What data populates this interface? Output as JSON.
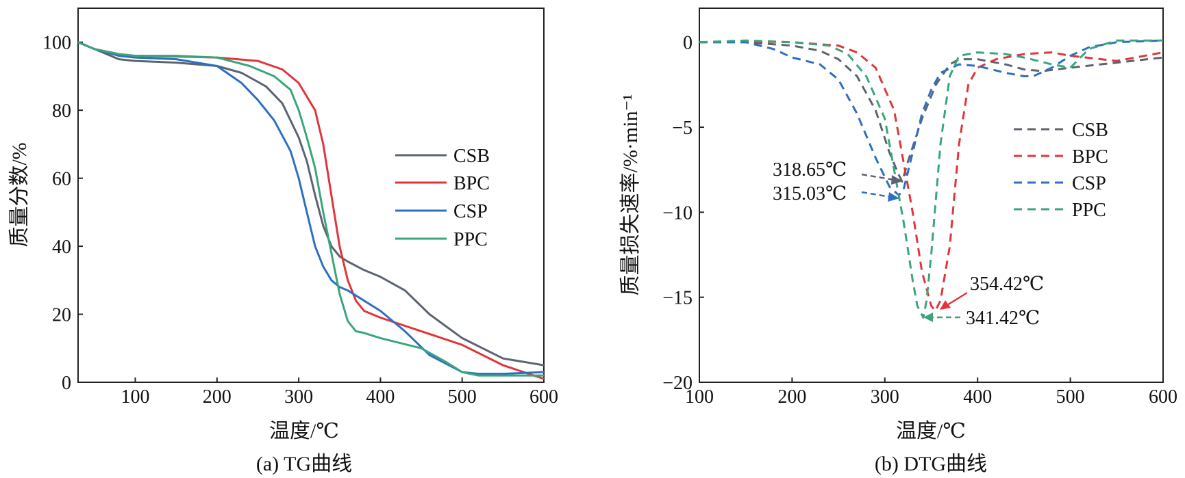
{
  "chart_data": [
    {
      "type": "line",
      "caption": "(a) TG曲线",
      "xlabel": "温度/℃",
      "ylabel": "质量分数/%",
      "xlim": [
        30,
        600
      ],
      "ylim": [
        0,
        110
      ],
      "xticks": [
        100,
        200,
        300,
        400,
        500,
        600
      ],
      "yticks": [
        0,
        20,
        40,
        60,
        80,
        100
      ],
      "legend_position": "right-center",
      "series": [
        {
          "name": "CSB",
          "color": "#5b6470",
          "dash": "solid",
          "x": [
            30,
            40,
            60,
            80,
            100,
            150,
            200,
            230,
            260,
            280,
            300,
            310,
            320,
            330,
            340,
            350,
            360,
            380,
            400,
            430,
            460,
            500,
            550,
            600
          ],
          "y": [
            100,
            99,
            97,
            95,
            94.5,
            94,
            93,
            91,
            87,
            82,
            72,
            65,
            55,
            46,
            40,
            37,
            35.5,
            33,
            31,
            27,
            20,
            13,
            7,
            5
          ]
        },
        {
          "name": "BPC",
          "color": "#e0353a",
          "dash": "solid",
          "x": [
            30,
            50,
            80,
            100,
            150,
            200,
            250,
            280,
            300,
            320,
            330,
            340,
            350,
            360,
            370,
            380,
            400,
            450,
            500,
            550,
            600
          ],
          "y": [
            100,
            98,
            96.5,
            96,
            95.8,
            95.5,
            94.5,
            92,
            88,
            80,
            70,
            55,
            40,
            30,
            24,
            21,
            19,
            15,
            11,
            5,
            1
          ]
        },
        {
          "name": "CSP",
          "color": "#2e6fc2",
          "dash": "solid",
          "x": [
            30,
            50,
            80,
            100,
            150,
            200,
            230,
            250,
            270,
            290,
            300,
            310,
            320,
            330,
            340,
            350,
            360,
            380,
            400,
            430,
            460,
            500,
            520,
            550,
            600
          ],
          "y": [
            100,
            98,
            96,
            95.5,
            95,
            93,
            88,
            83,
            77,
            68,
            60,
            50,
            40,
            34,
            30,
            28,
            27,
            24,
            21,
            15,
            8,
            3,
            2.5,
            2.5,
            3
          ]
        },
        {
          "name": "PPC",
          "color": "#3aa57a",
          "dash": "solid",
          "x": [
            30,
            50,
            80,
            100,
            150,
            200,
            240,
            270,
            290,
            300,
            310,
            320,
            330,
            340,
            350,
            360,
            370,
            380,
            400,
            450,
            480,
            500,
            520,
            550,
            600
          ],
          "y": [
            100,
            98,
            96.5,
            96,
            96,
            95.5,
            93,
            90,
            86,
            80,
            72,
            63,
            50,
            38,
            26,
            18,
            15,
            14.5,
            13,
            10,
            6,
            3,
            2,
            2,
            2
          ]
        }
      ]
    },
    {
      "type": "line",
      "caption": "(b) DTG曲线",
      "xlabel": "温度/℃",
      "ylabel": "质量损失速率/%·min⁻¹",
      "xlim": [
        100,
        600
      ],
      "ylim": [
        -20,
        2
      ],
      "xticks": [
        100,
        200,
        300,
        400,
        500,
        600
      ],
      "yticks": [
        0,
        -5,
        -10,
        -15,
        -20
      ],
      "legend_position": "right-center",
      "series": [
        {
          "name": "CSB",
          "color": "#5b6470",
          "dash": "dashed",
          "x": [
            100,
            150,
            200,
            230,
            250,
            270,
            290,
            305,
            315,
            318.65,
            325,
            340,
            355,
            370,
            380,
            400,
            430,
            450,
            470,
            500,
            550,
            600
          ],
          "y": [
            0,
            0,
            -0.2,
            -0.5,
            -1,
            -2,
            -4,
            -6.5,
            -7.8,
            -8.2,
            -7,
            -4.5,
            -2.5,
            -1.3,
            -1,
            -1,
            -1.3,
            -1.6,
            -1.7,
            -1.5,
            -1.2,
            -0.9
          ]
        },
        {
          "name": "BPC",
          "color": "#e0353a",
          "dash": "dashed",
          "x": [
            100,
            150,
            200,
            250,
            270,
            290,
            310,
            320,
            330,
            340,
            350,
            354.42,
            360,
            370,
            380,
            390,
            400,
            420,
            450,
            480,
            500,
            550,
            600
          ],
          "y": [
            0,
            0.05,
            0,
            -0.2,
            -0.6,
            -1.5,
            -4,
            -7,
            -10,
            -13.5,
            -15.5,
            -15.8,
            -15.2,
            -12,
            -6,
            -2.5,
            -1.5,
            -1,
            -0.7,
            -0.6,
            -0.8,
            -1.1,
            -0.6
          ]
        },
        {
          "name": "CSP",
          "color": "#2e6fc2",
          "dash": "dashed",
          "x": [
            100,
            150,
            180,
            200,
            230,
            250,
            270,
            290,
            305,
            315.03,
            320,
            330,
            340,
            350,
            360,
            380,
            400,
            430,
            450,
            460,
            480,
            500,
            520,
            550,
            600
          ],
          "y": [
            0,
            0,
            -0.4,
            -0.9,
            -1.3,
            -2.2,
            -4.2,
            -6.8,
            -8.5,
            -9,
            -8.7,
            -6.5,
            -4.2,
            -2.8,
            -1.8,
            -1.3,
            -1.4,
            -1.8,
            -2,
            -2,
            -1.5,
            -0.8,
            -0.3,
            0,
            0.1
          ]
        },
        {
          "name": "PPC",
          "color": "#3aa57a",
          "dash": "dashed",
          "x": [
            100,
            150,
            200,
            240,
            260,
            280,
            300,
            310,
            320,
            330,
            335,
            341.42,
            345,
            350,
            360,
            370,
            380,
            400,
            430,
            450,
            480,
            500,
            520,
            550,
            600
          ],
          "y": [
            0,
            0.1,
            0,
            -0.2,
            -0.7,
            -2,
            -4.5,
            -7.5,
            -10.5,
            -14,
            -15.5,
            -16.2,
            -15.2,
            -12.5,
            -6,
            -2,
            -0.8,
            -0.6,
            -0.7,
            -0.9,
            -1.3,
            -1.5,
            -0.4,
            0.1,
            0.1
          ]
        }
      ],
      "annotations": [
        {
          "text": "318.65℃",
          "series": "CSB",
          "x": 318.65,
          "y": -8.2
        },
        {
          "text": "315.03℃",
          "series": "CSP",
          "x": 315.03,
          "y": -9
        },
        {
          "text": "354.42℃",
          "series": "BPC",
          "x": 354.42,
          "y": -15.8
        },
        {
          "text": "341.42℃",
          "series": "PPC",
          "x": 341.42,
          "y": -16.2
        }
      ]
    }
  ]
}
